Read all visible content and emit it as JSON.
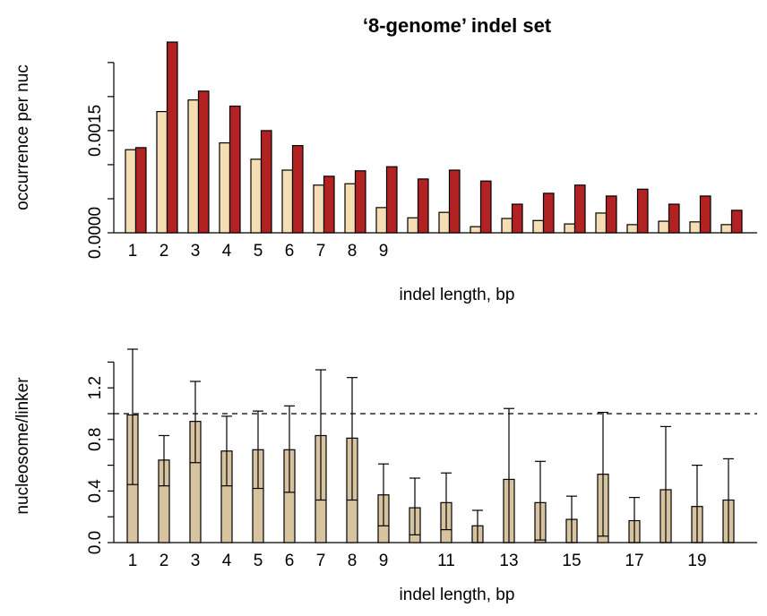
{
  "chart_data": [
    {
      "type": "grouped-bar",
      "title": "‘8-genome’ indel set",
      "xlabel": "indel length, bp",
      "ylabel": "occurrence per nuc",
      "categories": [
        "1",
        "2",
        "3",
        "4",
        "5",
        "6",
        "7",
        "8",
        "9",
        null,
        null,
        null,
        null,
        null,
        null,
        null,
        null,
        null,
        null,
        null
      ],
      "series": [
        {
          "color": "#f5deb3",
          "values": [
            0.00122,
            0.00178,
            0.00195,
            0.00132,
            0.00108,
            0.00092,
            0.0007,
            0.00072,
            0.00037,
            0.00022,
            0.0003,
            9e-05,
            0.00021,
            0.00018,
            0.00013,
            0.00029,
            0.00012,
            0.00017,
            0.00016,
            0.00012
          ]
        },
        {
          "color": "#b22222",
          "values": [
            0.00125,
            0.0028,
            0.00208,
            0.00186,
            0.0015,
            0.00128,
            0.00083,
            0.00091,
            0.00097,
            0.00079,
            0.00092,
            0.00076,
            0.00042,
            0.00058,
            0.0007,
            0.00054,
            0.00064,
            0.00042,
            0.00054,
            0.00033
          ]
        }
      ],
      "ylim": [
        0,
        0.0028
      ],
      "yticks": [
        {
          "value": 0,
          "label": "0.0000"
        },
        {
          "value": 0.0005,
          "label": null
        },
        {
          "value": 0.001,
          "label": null
        },
        {
          "value": 0.0015,
          "label": "0.0015"
        },
        {
          "value": 0.002,
          "label": null
        },
        {
          "value": 0.0025,
          "label": null
        }
      ]
    },
    {
      "type": "errorbar-bar",
      "xlabel": "indel length, bp",
      "ylabel": "nucleosome/linker",
      "color": "#d8c3a0",
      "reference_line": 1.0,
      "categories": [
        "1",
        "2",
        "3",
        "4",
        "5",
        "6",
        "7",
        "8",
        "9",
        null,
        "11",
        null,
        "13",
        null,
        "15",
        null,
        "17",
        null,
        "19",
        null
      ],
      "values": [
        0.99,
        0.64,
        0.94,
        0.71,
        0.72,
        0.72,
        0.83,
        0.81,
        0.37,
        0.27,
        0.31,
        0.13,
        0.49,
        0.31,
        0.18,
        0.53,
        0.17,
        0.41,
        0.28,
        0.33
      ],
      "upper": [
        1.5,
        0.83,
        1.25,
        0.98,
        1.02,
        1.06,
        1.34,
        1.28,
        0.61,
        0.5,
        0.54,
        0.25,
        1.04,
        0.63,
        0.36,
        1.01,
        0.35,
        0.9,
        0.6,
        0.65
      ],
      "lower": [
        0.45,
        0.44,
        0.62,
        0.44,
        0.42,
        0.39,
        0.33,
        0.33,
        0.13,
        0.06,
        0.1,
        0.0,
        0.0,
        0.02,
        0.0,
        0.05,
        0.0,
        0.0,
        0.0,
        0.0
      ],
      "ylim": [
        0,
        1.5
      ],
      "yticks": [
        {
          "value": 0,
          "label": "0.0"
        },
        {
          "value": 0.2,
          "label": null
        },
        {
          "value": 0.4,
          "label": "0.4"
        },
        {
          "value": 0.6,
          "label": null
        },
        {
          "value": 0.8,
          "label": "0.8"
        },
        {
          "value": 1.0,
          "label": null
        },
        {
          "value": 1.2,
          "label": "1.2"
        },
        {
          "value": 1.4,
          "label": null
        }
      ]
    }
  ]
}
